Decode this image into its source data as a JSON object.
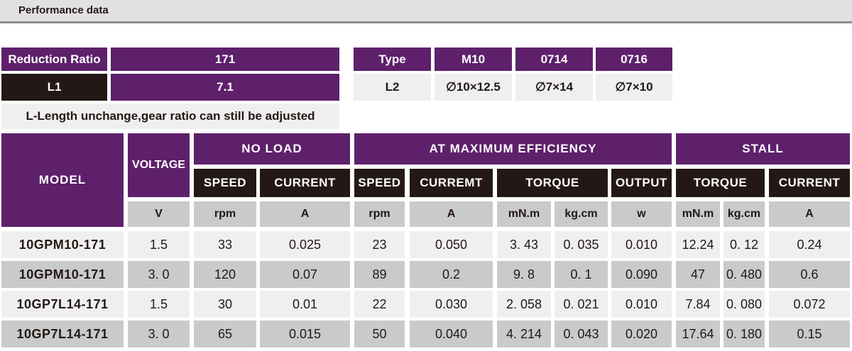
{
  "title": "Performance data",
  "spec": {
    "reduction_ratio_label": "Reduction Ratio",
    "reduction_ratio": "171",
    "l1_label": "L1",
    "l1": "7.1",
    "note": "L-Length unchange,gear ratio can still be adjusted",
    "type_label": "Type",
    "types": [
      "M10",
      "0714",
      "0716"
    ],
    "l2_label": "L2",
    "l2": [
      "∅10×12.5",
      "∅7×14",
      "∅7×10"
    ]
  },
  "table": {
    "model": "MODEL",
    "voltage": "VOLTAGE",
    "no_load": "NO LOAD",
    "max_eff": "AT MAXIMUM EFFICIENCY",
    "stall": "STALL",
    "sub": {
      "speed": "SPEED",
      "current": "CURRENT",
      "speed2": "SPEED",
      "curremt": "CURREMT",
      "torque": "TORQUE",
      "output": "OUTPUT",
      "torque2": "TORQUE",
      "current2": "CURRENT"
    },
    "units": [
      "V",
      "rpm",
      "A",
      "rpm",
      "A",
      "mN.m",
      "kg.cm",
      "w",
      "mN.m",
      "kg.cm",
      "A"
    ],
    "rows": [
      [
        "10GPM10-171",
        "1.5",
        "33",
        "0.025",
        "23",
        "0.050",
        "3. 43",
        "0. 035",
        "0.010",
        "12.24",
        "0. 12",
        "0.24"
      ],
      [
        "10GPM10-171",
        "3. 0",
        "120",
        "0.07",
        "89",
        "0.2",
        "9. 8",
        "0. 1",
        "0.090",
        "47",
        "0. 480",
        "0.6"
      ],
      [
        "10GP7L14-171",
        "1.5",
        "30",
        "0.01",
        "22",
        "0.030",
        "2. 058",
        "0. 021",
        "0.010",
        "7.84",
        "0. 080",
        "0.072"
      ],
      [
        "10GP7L14-171",
        "3. 0",
        "65",
        "0.015",
        "50",
        "0.040",
        "4. 214",
        "0. 043",
        "0.020",
        "17.64",
        "0. 180",
        "0.15"
      ]
    ]
  }
}
